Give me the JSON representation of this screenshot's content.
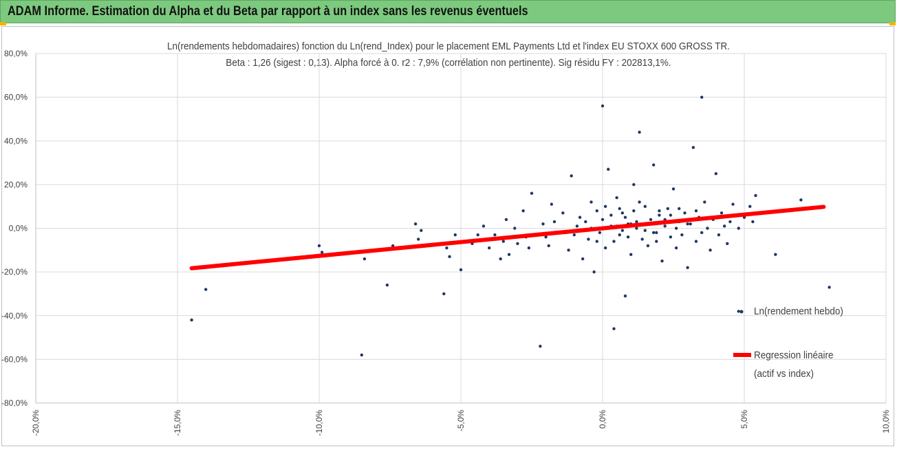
{
  "banner": {
    "title": "ADAM Informe. Estimation du Alpha et du Beta par rapport à un index sans les revenus éventuels"
  },
  "colors": {
    "banner": "#7dc97f",
    "points": "#1f3864",
    "regression": "#ff0000",
    "grid": "#d9d9d9"
  },
  "chart_data": {
    "type": "scatter",
    "title": "Ln(rendements hebdomadaires) fonction du Ln(rend_Index) pour le placement EML Payments Ltd et l'index EU STOXX 600 GROSS TR.",
    "subtitle": "Beta : 1,26 (sigest : 0,13). Alpha forcé à 0. r2 : 7,9% (corrélation non pertinente). Sig résidu FY : 202813,1%.",
    "xlim": [
      -0.2,
      0.1
    ],
    "ylim": [
      -0.8,
      0.8
    ],
    "x_ticks": [
      "-20,0%",
      "-15,0%",
      "-10,0%",
      "-5,0%",
      "0,0%",
      "5,0%",
      "10,0%"
    ],
    "y_ticks": [
      "80,0%",
      "60,0%",
      "40,0%",
      "20,0%",
      "0,0%",
      "-20,0%",
      "-40,0%",
      "-60,0%",
      "-80,0%"
    ],
    "grid": "vertical",
    "legend_position": "right",
    "series": [
      {
        "name": "Ln(rendement hebdo)",
        "kind": "scatter",
        "points": [
          [
            -0.145,
            -0.42
          ],
          [
            -0.14,
            -0.28
          ],
          [
            -0.1,
            -0.08
          ],
          [
            -0.099,
            -0.11
          ],
          [
            -0.085,
            -0.58
          ],
          [
            -0.084,
            -0.14
          ],
          [
            -0.076,
            -0.26
          ],
          [
            -0.074,
            -0.08
          ],
          [
            -0.066,
            0.02
          ],
          [
            -0.065,
            -0.05
          ],
          [
            -0.064,
            -0.01
          ],
          [
            -0.056,
            -0.3
          ],
          [
            -0.055,
            -0.09
          ],
          [
            -0.054,
            -0.13
          ],
          [
            -0.052,
            -0.03
          ],
          [
            -0.05,
            -0.19
          ],
          [
            -0.046,
            -0.07
          ],
          [
            -0.044,
            -0.03
          ],
          [
            -0.042,
            0.01
          ],
          [
            -0.04,
            -0.09
          ],
          [
            -0.038,
            -0.03
          ],
          [
            -0.036,
            -0.14
          ],
          [
            -0.035,
            -0.06
          ],
          [
            -0.034,
            0.04
          ],
          [
            -0.033,
            -0.12
          ],
          [
            -0.031,
            0.0
          ],
          [
            -0.03,
            -0.07
          ],
          [
            -0.028,
            0.08
          ],
          [
            -0.027,
            -0.04
          ],
          [
            -0.026,
            -0.09
          ],
          [
            -0.025,
            0.16
          ],
          [
            -0.024,
            -0.03
          ],
          [
            -0.022,
            -0.54
          ],
          [
            -0.021,
            0.02
          ],
          [
            -0.019,
            -0.08
          ],
          [
            -0.018,
            0.11
          ],
          [
            -0.016,
            -0.02
          ],
          [
            -0.014,
            0.07
          ],
          [
            -0.012,
            -0.1
          ],
          [
            -0.011,
            0.24
          ],
          [
            -0.01,
            -0.03
          ],
          [
            -0.008,
            0.05
          ],
          [
            -0.007,
            -0.14
          ],
          [
            -0.006,
            0.03
          ],
          [
            -0.005,
            -0.05
          ],
          [
            -0.004,
            0.12
          ],
          [
            -0.003,
            -0.2
          ],
          [
            -0.002,
            0.08
          ],
          [
            -0.001,
            -0.02
          ],
          [
            0.0,
            0.04
          ],
          [
            0.001,
            -0.09
          ],
          [
            0.002,
            0.27
          ],
          [
            0.003,
            0.01
          ],
          [
            0.004,
            -0.06
          ],
          [
            0.005,
            0.14
          ],
          [
            0.006,
            -0.03
          ],
          [
            0.007,
            0.07
          ],
          [
            0.008,
            -0.31
          ],
          [
            0.009,
            0.02
          ],
          [
            0.01,
            -0.12
          ],
          [
            0.011,
            0.2
          ],
          [
            0.012,
            0.0
          ],
          [
            0.013,
            0.44
          ],
          [
            0.014,
            -0.05
          ],
          [
            0.015,
            0.1
          ],
          [
            0.016,
            -0.08
          ],
          [
            0.017,
            0.04
          ],
          [
            0.018,
            0.29
          ],
          [
            0.019,
            -0.02
          ],
          [
            0.02,
            0.06
          ],
          [
            0.021,
            -0.15
          ],
          [
            0.022,
            0.01
          ],
          [
            0.023,
            0.09
          ],
          [
            0.024,
            -0.04
          ],
          [
            0.025,
            0.18
          ],
          [
            0.026,
            -0.09
          ],
          [
            0.027,
            0.03
          ],
          [
            0.028,
            -0.03
          ],
          [
            0.029,
            0.07
          ],
          [
            0.03,
            -0.18
          ],
          [
            0.031,
            0.02
          ],
          [
            0.032,
            0.37
          ],
          [
            0.033,
            -0.06
          ],
          [
            0.034,
            0.05
          ],
          [
            0.035,
            -0.02
          ],
          [
            0.036,
            0.12
          ],
          [
            0.037,
            0.0
          ],
          [
            0.038,
            -0.1
          ],
          [
            0.039,
            0.04
          ],
          [
            0.04,
            0.25
          ],
          [
            0.041,
            -0.03
          ],
          [
            0.042,
            0.07
          ],
          [
            0.043,
            0.01
          ],
          [
            0.044,
            -0.07
          ],
          [
            0.045,
            0.03
          ],
          [
            0.046,
            0.11
          ],
          [
            0.048,
            -0.38
          ],
          [
            0.048,
            0.0
          ],
          [
            0.05,
            0.05
          ],
          [
            0.052,
            0.1
          ],
          [
            0.053,
            0.03
          ],
          [
            0.054,
            0.15
          ],
          [
            0.061,
            -0.12
          ],
          [
            0.07,
            0.13
          ],
          [
            0.08,
            -0.27
          ],
          [
            0.0,
            0.56
          ],
          [
            0.035,
            0.6
          ],
          [
            0.004,
            -0.46
          ],
          [
            0.02,
            0.08
          ],
          [
            0.01,
            0.02
          ],
          [
            0.015,
            -0.01
          ],
          [
            0.005,
            0.01
          ],
          [
            -0.004,
            0.0
          ],
          [
            0.008,
            0.05
          ],
          [
            0.012,
            0.03
          ],
          [
            0.018,
            -0.02
          ],
          [
            0.022,
            0.04
          ],
          [
            0.026,
            0.0
          ],
          [
            0.03,
            0.02
          ],
          [
            -0.009,
            0.01
          ],
          [
            -0.013,
            -0.02
          ],
          [
            -0.017,
            0.03
          ],
          [
            -0.02,
            -0.04
          ],
          [
            0.003,
            0.06
          ],
          [
            0.007,
            -0.01
          ],
          [
            0.011,
            0.08
          ],
          [
            0.016,
            0.02
          ],
          [
            0.024,
            0.06
          ],
          [
            -0.002,
            -0.06
          ],
          [
            0.001,
            0.1
          ],
          [
            0.006,
            0.09
          ],
          [
            0.009,
            -0.04
          ],
          [
            0.013,
            0.12
          ],
          [
            0.019,
            -0.06
          ],
          [
            0.027,
            0.09
          ],
          [
            0.033,
            0.08
          ]
        ]
      },
      {
        "name": "Regression linéaire (actif vs index)",
        "kind": "line",
        "points": [
          [
            -0.145,
            -0.183
          ],
          [
            0.078,
            0.098
          ]
        ]
      }
    ],
    "legend": {
      "entries": [
        "Ln(rendement hebdo)",
        "Regression linéaire",
        "(actif vs index)"
      ]
    }
  }
}
